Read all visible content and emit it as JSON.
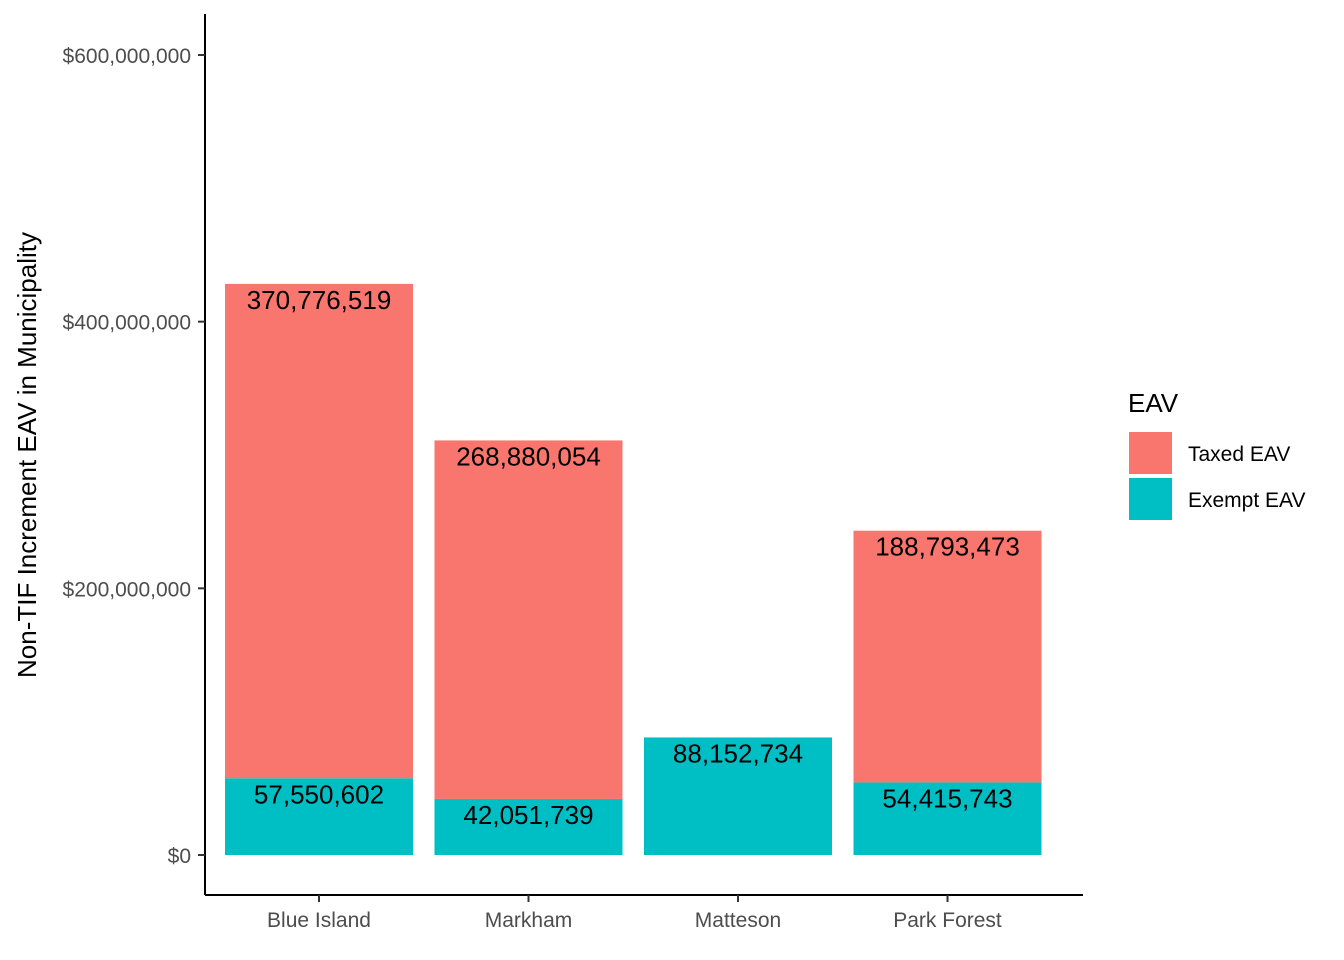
{
  "chart_data": {
    "type": "bar",
    "stacked": true,
    "categories": [
      "Blue Island",
      "Markham",
      "Matteson",
      "Park Forest"
    ],
    "series": [
      {
        "name": "Exempt EAV",
        "color": "#00BFC4",
        "values": [
          57550602,
          42051739,
          88152734,
          54415743
        ],
        "labels": [
          "57,550,602",
          "42,051,739",
          "88,152,734",
          "54,415,743"
        ]
      },
      {
        "name": "Taxed EAV",
        "color": "#F8766D",
        "values": [
          370776519,
          268880054,
          0,
          188793473
        ],
        "labels": [
          "370,776,519",
          "268,880,054",
          "",
          "188,793,473"
        ]
      }
    ],
    "xlabel": "",
    "ylabel": "Non-TIF Increment EAV in Municipality",
    "ylim": [
      0,
      600000000
    ],
    "yticks": [
      0,
      200000000,
      400000000,
      600000000
    ],
    "ytick_labels": [
      "$0",
      "$200,000,000",
      "$400,000,000",
      "$600,000,000"
    ],
    "grid": false,
    "legend": {
      "title": "EAV",
      "placement": "right",
      "entries": [
        {
          "name": "Taxed EAV",
          "color": "#F8766D"
        },
        {
          "name": "Exempt EAV",
          "color": "#00BFC4"
        }
      ]
    }
  }
}
